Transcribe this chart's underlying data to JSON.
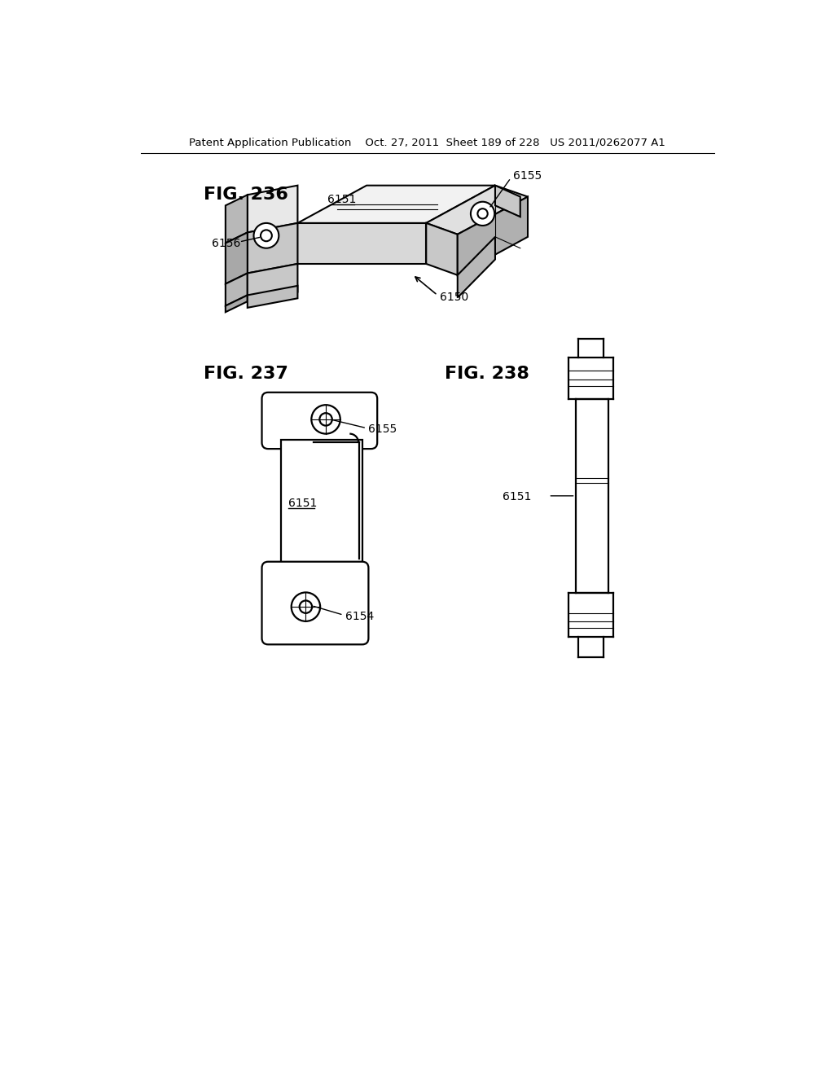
{
  "page_header": "Patent Application Publication    Oct. 27, 2011  Sheet 189 of 228   US 2011/0262077 A1",
  "fig236_label": "FIG. 236",
  "fig237_label": "FIG. 237",
  "fig238_label": "FIG. 238",
  "bg_color": "#ffffff",
  "line_color": "#000000",
  "annotation_fontsize": 10,
  "fig_label_fontsize": 16,
  "header_fontsize": 9.5
}
